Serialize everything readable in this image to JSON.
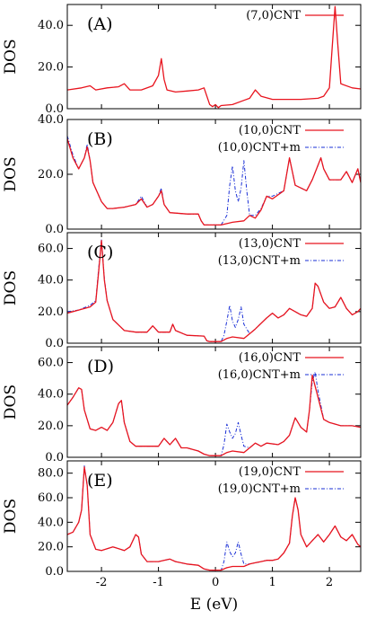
{
  "colors": {
    "cnt": "#e8141e",
    "cnt_m": "#1a2fd6"
  },
  "chart_data": [
    {
      "type": "line",
      "panel_label": "(A)",
      "ylabel": "DOS",
      "xlim": [
        -2.6,
        2.55
      ],
      "ylim": [
        0,
        50
      ],
      "yticks": [
        0,
        20,
        40
      ],
      "ytick_labels": [
        "0.0",
        "20.0",
        "40.0"
      ],
      "series": [
        {
          "name": "(7,0)CNT",
          "style": "solid",
          "x": [
            -2.6,
            -2.35,
            -2.2,
            -2.1,
            -1.9,
            -1.7,
            -1.6,
            -1.5,
            -1.3,
            -1.1,
            -1.0,
            -0.95,
            -0.9,
            -0.85,
            -0.7,
            -0.5,
            -0.3,
            -0.2,
            -0.1,
            -0.05,
            0.0,
            0.05,
            0.1,
            0.3,
            0.5,
            0.6,
            0.7,
            0.8,
            1.0,
            1.5,
            1.8,
            1.9,
            2.0,
            2.05,
            2.1,
            2.15,
            2.2,
            2.4,
            2.55
          ],
          "y": [
            9,
            10,
            11,
            9,
            10,
            10.5,
            12,
            9,
            9,
            11,
            16,
            24,
            14,
            9,
            8,
            8.5,
            9,
            10,
            2,
            1,
            2,
            0.5,
            1.5,
            2,
            4,
            5,
            9,
            6,
            4.5,
            4.5,
            5,
            6,
            10,
            30,
            49,
            30,
            12,
            10,
            9.5
          ]
        }
      ]
    },
    {
      "type": "line",
      "panel_label": "(B)",
      "ylabel": "DOS",
      "xlim": [
        -2.6,
        2.55
      ],
      "ylim": [
        0,
        40
      ],
      "yticks": [
        0,
        20,
        40
      ],
      "ytick_labels": [
        "0.0",
        "20.0",
        "40.0"
      ],
      "series": [
        {
          "name": "(10,0)CNT",
          "style": "solid",
          "x": [
            -2.6,
            -2.5,
            -2.4,
            -2.3,
            -2.25,
            -2.2,
            -2.15,
            -2.0,
            -1.9,
            -1.8,
            -1.6,
            -1.4,
            -1.3,
            -1.2,
            -1.1,
            -1.0,
            -0.95,
            -0.9,
            -0.8,
            -0.5,
            -0.3,
            -0.25,
            -0.2,
            0.1,
            0.2,
            0.3,
            0.5,
            0.6,
            0.7,
            0.8,
            0.9,
            1.0,
            1.2,
            1.3,
            1.4,
            1.6,
            1.7,
            1.85,
            1.9,
            2.0,
            2.2,
            2.3,
            2.4,
            2.5,
            2.55
          ],
          "y": [
            33,
            26,
            22,
            26,
            30,
            25,
            17,
            10,
            7.5,
            7.5,
            8,
            9,
            11,
            8,
            9,
            12,
            14,
            9,
            6,
            5.5,
            5.5,
            3,
            1.5,
            1.5,
            2,
            2.5,
            3,
            5,
            4,
            7,
            12,
            11,
            14,
            26,
            16,
            14,
            18,
            26,
            22,
            18,
            18,
            21,
            17,
            22,
            17
          ]
        },
        {
          "name": "(10,0)CNT+m",
          "style": "dashed",
          "x": [
            -2.6,
            -2.5,
            -2.4,
            -2.3,
            -2.25,
            -2.2,
            -2.15,
            -2.0,
            -1.9,
            -1.8,
            -1.6,
            -1.4,
            -1.3,
            -1.2,
            -1.1,
            -1.0,
            -0.95,
            -0.9,
            -0.8,
            -0.5,
            -0.3,
            -0.25,
            -0.2,
            0.1,
            0.2,
            0.25,
            0.3,
            0.35,
            0.4,
            0.45,
            0.5,
            0.55,
            0.6,
            0.7,
            0.8,
            0.9,
            1.0,
            1.2,
            1.3,
            1.4,
            1.6,
            1.7,
            1.85,
            1.9,
            2.0,
            2.2,
            2.3,
            2.4,
            2.5,
            2.55
          ],
          "y": [
            34,
            27,
            22,
            26,
            31,
            25,
            17,
            10,
            7.5,
            7.5,
            8,
            9,
            12,
            8,
            9,
            12,
            15,
            9,
            6,
            5.5,
            5.5,
            3,
            1.5,
            1.5,
            5,
            16,
            23,
            14,
            10,
            15,
            25,
            14,
            5,
            5,
            7.5,
            12,
            12,
            14,
            26,
            16,
            14,
            18,
            26,
            22,
            18,
            18,
            21,
            17,
            22,
            17
          ]
        }
      ]
    },
    {
      "type": "line",
      "panel_label": "(C)",
      "ylabel": "DOS",
      "xlim": [
        -2.6,
        2.55
      ],
      "ylim": [
        0,
        70
      ],
      "yticks": [
        0,
        20,
        40,
        60
      ],
      "ytick_labels": [
        "0.0",
        "20.0",
        "40.0",
        "60.0"
      ],
      "series": [
        {
          "name": "(13,0)CNT",
          "style": "solid",
          "x": [
            -2.6,
            -2.4,
            -2.2,
            -2.1,
            -2.05,
            -2.0,
            -1.95,
            -1.9,
            -1.8,
            -1.6,
            -1.4,
            -1.2,
            -1.1,
            -1.0,
            -0.8,
            -0.75,
            -0.7,
            -0.5,
            -0.2,
            -0.15,
            -0.1,
            0.1,
            0.2,
            0.3,
            0.5,
            0.6,
            0.7,
            0.9,
            1.0,
            1.1,
            1.2,
            1.3,
            1.5,
            1.6,
            1.7,
            1.75,
            1.8,
            1.9,
            2.0,
            2.1,
            2.2,
            2.3,
            2.4,
            2.5,
            2.55
          ],
          "y": [
            19,
            21,
            23,
            26,
            45,
            65,
            40,
            27,
            15,
            8,
            7,
            7,
            11,
            7,
            7,
            12,
            8,
            5,
            4.5,
            1.5,
            1,
            1,
            3,
            4,
            3,
            6,
            9,
            16,
            19,
            16,
            18,
            22,
            18,
            17,
            22,
            38,
            36,
            26,
            22,
            23,
            29,
            22,
            18,
            20,
            22
          ]
        },
        {
          "name": "(13,0)CNT+m",
          "style": "dashed",
          "x": [
            -2.6,
            -2.4,
            -2.2,
            -2.1,
            -2.05,
            -2.0,
            -1.95,
            -1.9,
            -1.8,
            -1.6,
            -1.4,
            -1.2,
            -1.1,
            -1.0,
            -0.8,
            -0.75,
            -0.7,
            -0.5,
            -0.2,
            -0.15,
            -0.1,
            0.1,
            0.15,
            0.2,
            0.25,
            0.3,
            0.35,
            0.4,
            0.45,
            0.5,
            0.6,
            0.7,
            0.9,
            1.0,
            1.1,
            1.2,
            1.3,
            1.5,
            1.6,
            1.7,
            1.75,
            1.8,
            1.9,
            2.0,
            2.1,
            2.2,
            2.3,
            2.4,
            2.5,
            2.55
          ],
          "y": [
            20,
            21,
            24,
            27,
            47,
            66,
            41,
            27,
            15,
            8,
            7,
            7,
            11,
            7,
            7,
            12,
            8,
            5,
            4.5,
            1.5,
            1,
            1,
            5,
            14,
            24,
            14,
            10,
            15,
            23,
            12,
            6,
            9,
            16,
            19,
            16,
            18,
            22,
            18,
            17,
            22,
            38,
            36,
            26,
            22,
            23,
            29,
            22,
            18,
            20,
            22
          ]
        }
      ]
    },
    {
      "type": "line",
      "panel_label": "(D)",
      "ylabel": "DOS",
      "xlim": [
        -2.6,
        2.55
      ],
      "ylim": [
        0,
        70
      ],
      "yticks": [
        0,
        20,
        40,
        60
      ],
      "ytick_labels": [
        "0.0",
        "20.0",
        "40.0",
        "60.0"
      ],
      "series": [
        {
          "name": "(16,0)CNT",
          "style": "solid",
          "x": [
            -2.6,
            -2.5,
            -2.4,
            -2.35,
            -2.3,
            -2.2,
            -2.1,
            -2.0,
            -1.9,
            -1.8,
            -1.7,
            -1.65,
            -1.6,
            -1.5,
            -1.4,
            -1.2,
            -1.0,
            -0.9,
            -0.8,
            -0.7,
            -0.6,
            -0.5,
            -0.3,
            -0.2,
            -0.1,
            0.1,
            0.2,
            0.3,
            0.5,
            0.6,
            0.7,
            0.8,
            0.9,
            1.1,
            1.2,
            1.3,
            1.4,
            1.5,
            1.6,
            1.65,
            1.7,
            1.75,
            1.8,
            1.9,
            2.0,
            2.2,
            2.4,
            2.55
          ],
          "y": [
            33,
            38,
            44,
            43,
            30,
            18,
            17,
            19,
            17,
            22,
            34,
            36,
            22,
            10,
            7,
            7,
            7,
            12,
            8,
            12,
            6,
            6,
            4,
            2,
            1,
            1,
            3,
            4,
            3,
            6,
            9,
            7,
            9,
            8,
            10,
            14,
            25,
            19,
            16,
            30,
            52,
            45,
            38,
            24,
            22,
            20,
            20,
            19
          ]
        },
        {
          "name": "(16,0)CNT+m",
          "style": "dashed",
          "x": [
            -2.6,
            -2.5,
            -2.4,
            -2.35,
            -2.3,
            -2.2,
            -2.1,
            -2.0,
            -1.9,
            -1.8,
            -1.7,
            -1.65,
            -1.6,
            -1.5,
            -1.4,
            -1.2,
            -1.0,
            -0.9,
            -0.8,
            -0.7,
            -0.6,
            -0.5,
            -0.3,
            -0.2,
            -0.1,
            0.1,
            0.15,
            0.2,
            0.25,
            0.3,
            0.35,
            0.4,
            0.45,
            0.5,
            0.6,
            0.7,
            0.8,
            0.9,
            1.1,
            1.2,
            1.3,
            1.4,
            1.5,
            1.6,
            1.65,
            1.7,
            1.75,
            1.8,
            1.9,
            2.0,
            2.2,
            2.4,
            2.55
          ],
          "y": [
            33,
            38,
            44,
            43,
            30,
            18,
            17,
            19,
            17,
            22,
            34,
            36,
            22,
            10,
            7,
            7,
            7,
            12,
            8,
            12,
            6,
            6,
            4,
            2,
            1,
            1,
            8,
            21,
            16,
            12,
            15,
            22,
            14,
            7,
            6,
            9,
            7,
            9,
            8,
            10,
            14,
            25,
            19,
            16,
            30,
            48,
            54,
            42,
            24,
            22,
            20,
            20,
            19
          ]
        }
      ]
    },
    {
      "type": "line",
      "panel_label": "(E)",
      "ylabel": "DOS",
      "xlabel": "E (eV)",
      "xlim": [
        -2.6,
        2.55
      ],
      "ylim": [
        0,
        90
      ],
      "yticks": [
        0,
        20,
        40,
        60,
        80
      ],
      "ytick_labels": [
        "0.0",
        "20.0",
        "40.0",
        "60.0",
        "80.0"
      ],
      "xticks": [
        -2,
        -1,
        0,
        1,
        2
      ],
      "xtick_labels": [
        "-2",
        "-1",
        "0",
        "1",
        "2"
      ],
      "series": [
        {
          "name": "(19,0)CNT",
          "style": "solid",
          "x": [
            -2.6,
            -2.5,
            -2.4,
            -2.35,
            -2.3,
            -2.25,
            -2.2,
            -2.1,
            -2.0,
            -1.8,
            -1.6,
            -1.5,
            -1.4,
            -1.35,
            -1.3,
            -1.2,
            -1.0,
            -0.8,
            -0.7,
            -0.5,
            -0.3,
            -0.2,
            -0.1,
            0.1,
            0.2,
            0.3,
            0.5,
            0.6,
            0.7,
            0.8,
            0.9,
            1.0,
            1.1,
            1.2,
            1.3,
            1.35,
            1.4,
            1.45,
            1.5,
            1.6,
            1.7,
            1.8,
            1.9,
            2.0,
            2.1,
            2.2,
            2.3,
            2.4,
            2.5,
            2.55
          ],
          "y": [
            30,
            32,
            40,
            50,
            85,
            70,
            30,
            18,
            17,
            20,
            17,
            20,
            30,
            28,
            14,
            8,
            8,
            10,
            8,
            6,
            5,
            2,
            1,
            1,
            3,
            4,
            4,
            6,
            7,
            8,
            9,
            9,
            10,
            15,
            23,
            45,
            60,
            50,
            30,
            20,
            25,
            30,
            24,
            30,
            37,
            28,
            25,
            30,
            22,
            20
          ]
        },
        {
          "name": "(19,0)CNT+m",
          "style": "dashed",
          "x": [
            -2.6,
            -2.5,
            -2.4,
            -2.35,
            -2.3,
            -2.25,
            -2.2,
            -2.1,
            -2.0,
            -1.8,
            -1.6,
            -1.5,
            -1.4,
            -1.35,
            -1.3,
            -1.2,
            -1.0,
            -0.8,
            -0.7,
            -0.5,
            -0.3,
            -0.2,
            -0.1,
            0.1,
            0.15,
            0.2,
            0.25,
            0.3,
            0.35,
            0.4,
            0.45,
            0.5,
            0.6,
            0.7,
            0.8,
            0.9,
            1.0,
            1.1,
            1.2,
            1.3,
            1.35,
            1.4,
            1.45,
            1.5,
            1.6,
            1.7,
            1.8,
            1.9,
            2.0,
            2.1,
            2.2,
            2.3,
            2.4,
            2.5,
            2.55
          ],
          "y": [
            30,
            32,
            40,
            50,
            86,
            70,
            30,
            18,
            17,
            20,
            17,
            20,
            30,
            28,
            14,
            8,
            8,
            10,
            8,
            6,
            5,
            2,
            1,
            1,
            8,
            24,
            16,
            12,
            15,
            24,
            14,
            6,
            6,
            7,
            8,
            9,
            9,
            10,
            15,
            23,
            45,
            60,
            50,
            30,
            20,
            25,
            30,
            24,
            30,
            37,
            28,
            25,
            30,
            22,
            20
          ]
        }
      ]
    }
  ]
}
